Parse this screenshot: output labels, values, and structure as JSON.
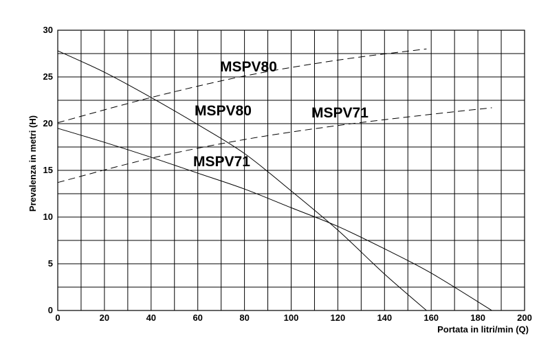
{
  "chart_data": {
    "type": "line",
    "title": "",
    "xlabel": "Portata in litri/min (Q)",
    "ylabel": "Prevalenza in metri (H)",
    "xlim": [
      0,
      200
    ],
    "ylim": [
      0,
      30
    ],
    "x_ticks": [
      "0",
      "20",
      "40",
      "60",
      "80",
      "100",
      "120",
      "140",
      "160",
      "180",
      "200"
    ],
    "y_ticks": [
      "0",
      "5",
      "10",
      "15",
      "20",
      "25",
      "30"
    ],
    "grid": true,
    "x_grid_step": 10,
    "y_grid_step": 2.5,
    "series": [
      {
        "name": "MSPV80",
        "style": "solid",
        "x": [
          0,
          20,
          40,
          60,
          80,
          100,
          120,
          140,
          158
        ],
        "y": [
          27.8,
          25.5,
          22.8,
          19.9,
          16.8,
          12.8,
          8.6,
          3.9,
          0
        ]
      },
      {
        "name": "MSPV71",
        "style": "solid",
        "x": [
          0,
          20,
          40,
          60,
          80,
          100,
          120,
          140,
          160,
          186
        ],
        "y": [
          19.5,
          18.0,
          16.4,
          14.7,
          13.0,
          11.0,
          9.0,
          6.6,
          4.0,
          0
        ]
      },
      {
        "name": "MSPV80",
        "style": "dashed",
        "x": [
          0,
          40,
          80,
          120,
          158
        ],
        "y": [
          20.1,
          22.8,
          25.1,
          26.8,
          28.0
        ]
      },
      {
        "name": "MSPV71",
        "style": "dashed",
        "x": [
          0,
          40,
          80,
          120,
          160,
          186
        ],
        "y": [
          13.7,
          16.3,
          18.3,
          19.8,
          21.0,
          21.7
        ]
      }
    ],
    "labels": [
      {
        "text": "MSPV80",
        "series": "dashed-MSPV80"
      },
      {
        "text": "MSPV80",
        "series": "solid-MSPV80"
      },
      {
        "text": "MSPV71",
        "series": "dashed-MSPV71"
      },
      {
        "text": "MSPV71",
        "series": "solid-MSPV71"
      }
    ]
  }
}
